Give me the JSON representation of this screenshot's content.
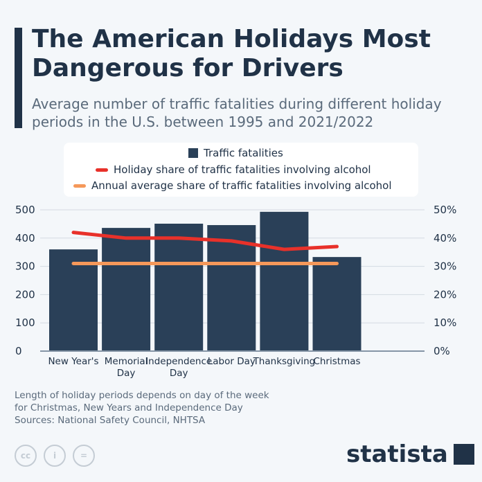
{
  "title": "The American Holidays Most Dangerous for Drivers",
  "subtitle": "Average number of traffic fatalities during different holiday periods in the U.S. between 1995 and 2021/2022",
  "chart_data": {
    "type": "bar+line",
    "categories": [
      "New Year's",
      "Memorial Day",
      "Independence Day",
      "Labor Day",
      "Thanksgiving",
      "Christmas"
    ],
    "categories_display": [
      [
        "New Year's"
      ],
      [
        "Memorial",
        "Day"
      ],
      [
        "Independence",
        "Day"
      ],
      [
        "Labor Day"
      ],
      [
        "Thanksgiving"
      ],
      [
        "Christmas"
      ]
    ],
    "series": [
      {
        "name": "Traffic fatalities",
        "type": "bar",
        "axis": "left",
        "color": "#2a4058",
        "values": [
          360,
          436,
          451,
          446,
          493,
          333
        ]
      },
      {
        "name": "Holiday share of traffic fatalities involving alcohol",
        "type": "line",
        "axis": "right",
        "color": "#e8312a",
        "values": [
          42,
          40,
          40,
          39,
          36,
          37
        ]
      },
      {
        "name": "Annual average share of traffic fatalities involving alcohol",
        "type": "line",
        "axis": "right",
        "color": "#f5985a",
        "values": [
          31,
          31,
          31,
          31,
          31,
          31
        ]
      }
    ],
    "y_left": {
      "lim": [
        0,
        500
      ],
      "ticks": [
        "0",
        "100",
        "200",
        "300",
        "400",
        "500"
      ]
    },
    "y_right": {
      "lim": [
        0,
        50
      ],
      "ticks": [
        "0%",
        "10%",
        "20%",
        "30%",
        "40%",
        "50%"
      ]
    },
    "grid": true,
    "legend_position": "top"
  },
  "note": [
    "Length of holiday periods depends on day of the week",
    "for Christmas, New Years and Independence Day",
    "Sources: National Safety Council, NHTSA"
  ],
  "license_icons": [
    "cc-icon",
    "attribution-icon",
    "no-derivatives-icon"
  ],
  "license_labels": [
    "cc",
    "i",
    "="
  ],
  "brand": "statista"
}
